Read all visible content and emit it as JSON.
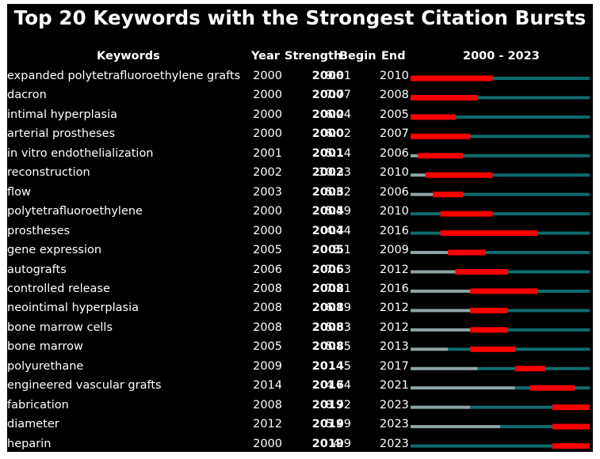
{
  "chart_data": {
    "type": "bar",
    "title": "Top 20 Keywords with the Strongest Citation Bursts",
    "headers": {
      "keywords": "Keywords",
      "year": "Year",
      "strength": "Strength",
      "begin": "Begin",
      "end": "End",
      "range": "2000 - 2023"
    },
    "xlim": [
      2000,
      2023
    ],
    "colors": {
      "pre_appearance": "#8fa5a5",
      "active": "#0f6b6e",
      "burst": "#ff0000",
      "background": "#000000",
      "text": "#ffffff"
    },
    "rows": [
      {
        "keyword": "expanded polytetrafluoroethylene grafts",
        "year": "2000",
        "strength": "9.81",
        "begin": "2000",
        "end": "2010"
      },
      {
        "keyword": "dacron",
        "year": "2000",
        "strength": "7.77",
        "begin": "2000",
        "end": "2008"
      },
      {
        "keyword": "intimal hyperplasia",
        "year": "2000",
        "strength": "6.24",
        "begin": "2000",
        "end": "2005"
      },
      {
        "keyword": "arterial prostheses",
        "year": "2000",
        "strength": "6.02",
        "begin": "2000",
        "end": "2007"
      },
      {
        "keyword": "in vitro endothelialization",
        "year": "2001",
        "strength": "5.14",
        "begin": "2001",
        "end": "2006"
      },
      {
        "keyword": "reconstruction",
        "year": "2002",
        "strength": "10.33",
        "begin": "2002",
        "end": "2010"
      },
      {
        "keyword": "flow",
        "year": "2003",
        "strength": "5.62",
        "begin": "2003",
        "end": "2006"
      },
      {
        "keyword": "polytetrafluoroethylene",
        "year": "2000",
        "strength": "5.59",
        "begin": "2004",
        "end": "2010"
      },
      {
        "keyword": "prostheses",
        "year": "2000",
        "strength": "4.74",
        "begin": "2004",
        "end": "2016"
      },
      {
        "keyword": "gene expression",
        "year": "2005",
        "strength": "5.1",
        "begin": "2005",
        "end": "2009"
      },
      {
        "keyword": "autografts",
        "year": "2006",
        "strength": "7.53",
        "begin": "2006",
        "end": "2012"
      },
      {
        "keyword": "controlled release",
        "year": "2008",
        "strength": "7.21",
        "begin": "2008",
        "end": "2016"
      },
      {
        "keyword": "neointimal hyperplasia",
        "year": "2008",
        "strength": "6.19",
        "begin": "2008",
        "end": "2012"
      },
      {
        "keyword": "bone marrow cells",
        "year": "2008",
        "strength": "5.63",
        "begin": "2008",
        "end": "2012"
      },
      {
        "keyword": "bone marrow",
        "year": "2005",
        "strength": "5.45",
        "begin": "2008",
        "end": "2013"
      },
      {
        "keyword": "polyurethane",
        "year": "2009",
        "strength": "5",
        "begin": "2014",
        "end": "2017"
      },
      {
        "keyword": "engineered vascular grafts",
        "year": "2014",
        "strength": "4.74",
        "begin": "2016",
        "end": "2021"
      },
      {
        "keyword": "fabrication",
        "year": "2008",
        "strength": "8.72",
        "begin": "2019",
        "end": "2023"
      },
      {
        "keyword": "diameter",
        "year": "2012",
        "strength": "5.49",
        "begin": "2019",
        "end": "2023"
      },
      {
        "keyword": "heparin",
        "year": "2000",
        "strength": "4.9",
        "begin": "2019",
        "end": "2023"
      }
    ]
  }
}
